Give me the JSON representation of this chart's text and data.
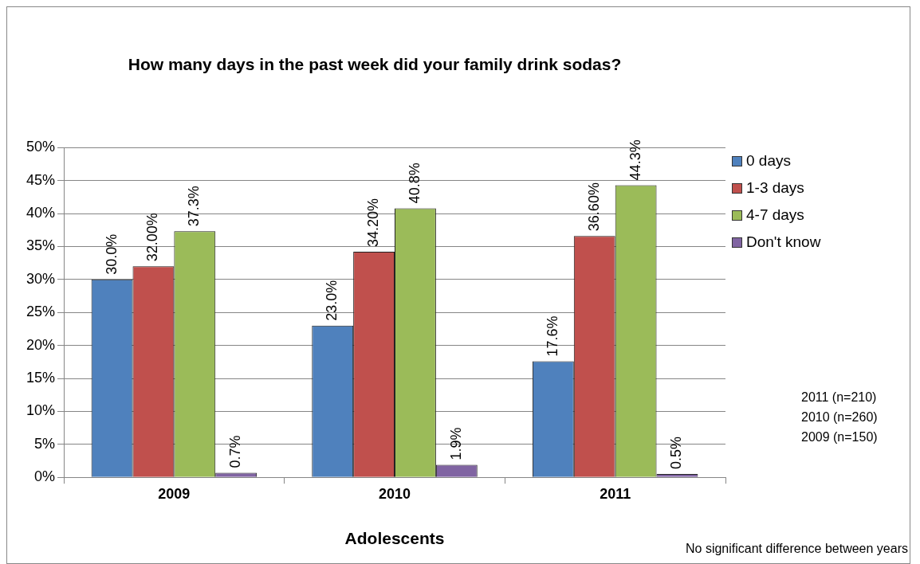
{
  "chart_data": {
    "type": "bar",
    "title": "How many days in the past week did your family drink sodas?",
    "xlabel": "Adolescents",
    "categories": [
      "2009",
      "2010",
      "2011"
    ],
    "series": [
      {
        "name": "0 days",
        "color": "#4f81bd",
        "values": [
          30.0,
          23.0,
          17.6
        ],
        "value_labels": [
          "30.0%",
          "23.0%",
          "17.6%"
        ]
      },
      {
        "name": "1-3 days",
        "color": "#c0504d",
        "values": [
          32.0,
          34.2,
          36.6
        ],
        "value_labels": [
          "32.00%",
          "34.20%",
          "36.60%"
        ]
      },
      {
        "name": "4-7 days",
        "color": "#9bbb59",
        "values": [
          37.3,
          40.8,
          44.3
        ],
        "value_labels": [
          "37.3%",
          "40.8%",
          "44.3%"
        ]
      },
      {
        "name": "Don't know",
        "color": "#8064a2",
        "values": [
          0.7,
          1.9,
          0.5
        ],
        "value_labels": [
          "0.7%",
          "1.9%",
          "0.5%"
        ]
      }
    ],
    "ylim": [
      0,
      50
    ],
    "yticks": [
      {
        "value": 0,
        "label": "0%"
      },
      {
        "value": 5,
        "label": "5%"
      },
      {
        "value": 10,
        "label": "10%"
      },
      {
        "value": 15,
        "label": "15%"
      },
      {
        "value": 20,
        "label": "20%"
      },
      {
        "value": 25,
        "label": "25%"
      },
      {
        "value": 30,
        "label": "30%"
      },
      {
        "value": 35,
        "label": "35%"
      },
      {
        "value": 40,
        "label": "40%"
      },
      {
        "value": 45,
        "label": "45%"
      },
      {
        "value": 50,
        "label": "50%"
      }
    ],
    "grid": "y",
    "legend": "right",
    "annotations": [
      "2011 (n=210)",
      "2010 (n=260)",
      "2009 (n=150)",
      "No significant difference between years"
    ]
  }
}
